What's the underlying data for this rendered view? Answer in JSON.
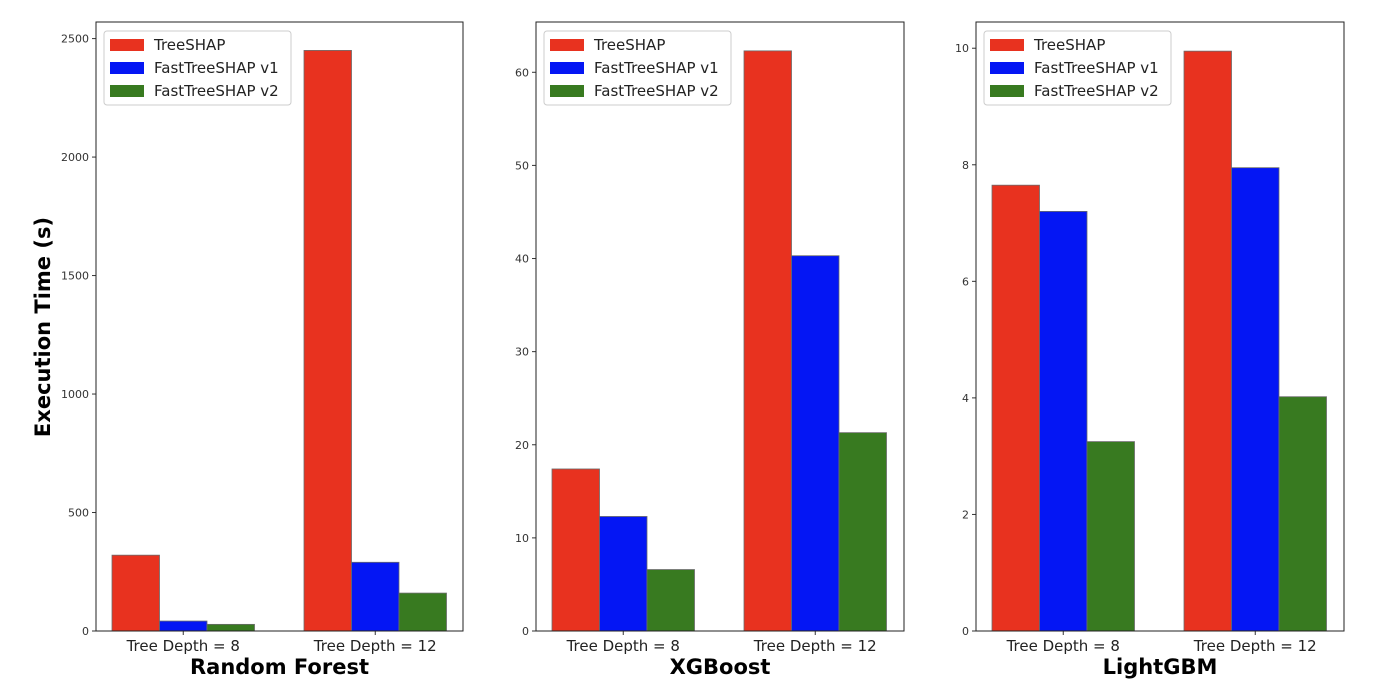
{
  "figure": {
    "ylabel": "Execution Time (s)"
  },
  "legend": [
    {
      "name": "TreeSHAP",
      "color": "#e8321f"
    },
    {
      "name": "FastTreeSHAP v1",
      "color": "#0416f4"
    },
    {
      "name": "FastTreeSHAP v2",
      "color": "#387a20"
    }
  ],
  "chart_data": [
    {
      "type": "bar",
      "title": "Random Forest",
      "categories": [
        "Tree Depth = 8",
        "Tree Depth = 12"
      ],
      "series": [
        {
          "name": "TreeSHAP",
          "values": [
            320,
            2450
          ]
        },
        {
          "name": "FastTreeSHAP v1",
          "values": [
            42,
            290
          ]
        },
        {
          "name": "FastTreeSHAP v2",
          "values": [
            28,
            160
          ]
        }
      ],
      "yticks": [
        0,
        500,
        1000,
        1500,
        2000,
        2500
      ],
      "ylim": [
        0,
        2570
      ],
      "legend_position": "top-left"
    },
    {
      "type": "bar",
      "title": "XGBoost",
      "categories": [
        "Tree Depth = 8",
        "Tree Depth = 12"
      ],
      "series": [
        {
          "name": "TreeSHAP",
          "values": [
            17.4,
            62.3
          ]
        },
        {
          "name": "FastTreeSHAP v1",
          "values": [
            12.3,
            40.3
          ]
        },
        {
          "name": "FastTreeSHAP v2",
          "values": [
            6.6,
            21.3
          ]
        }
      ],
      "yticks": [
        0,
        10,
        20,
        30,
        40,
        50,
        60
      ],
      "ylim": [
        0,
        65.4
      ],
      "legend_position": "top-left"
    },
    {
      "type": "bar",
      "title": "LightGBM",
      "categories": [
        "Tree Depth = 8",
        "Tree Depth = 12"
      ],
      "series": [
        {
          "name": "TreeSHAP",
          "values": [
            7.65,
            9.95
          ]
        },
        {
          "name": "FastTreeSHAP v1",
          "values": [
            7.2,
            7.95
          ]
        },
        {
          "name": "FastTreeSHAP v2",
          "values": [
            3.25,
            4.02
          ]
        }
      ],
      "yticks": [
        0,
        2,
        4,
        6,
        8,
        10
      ],
      "ylim": [
        0,
        10.45
      ],
      "legend_position": "top-left"
    }
  ]
}
